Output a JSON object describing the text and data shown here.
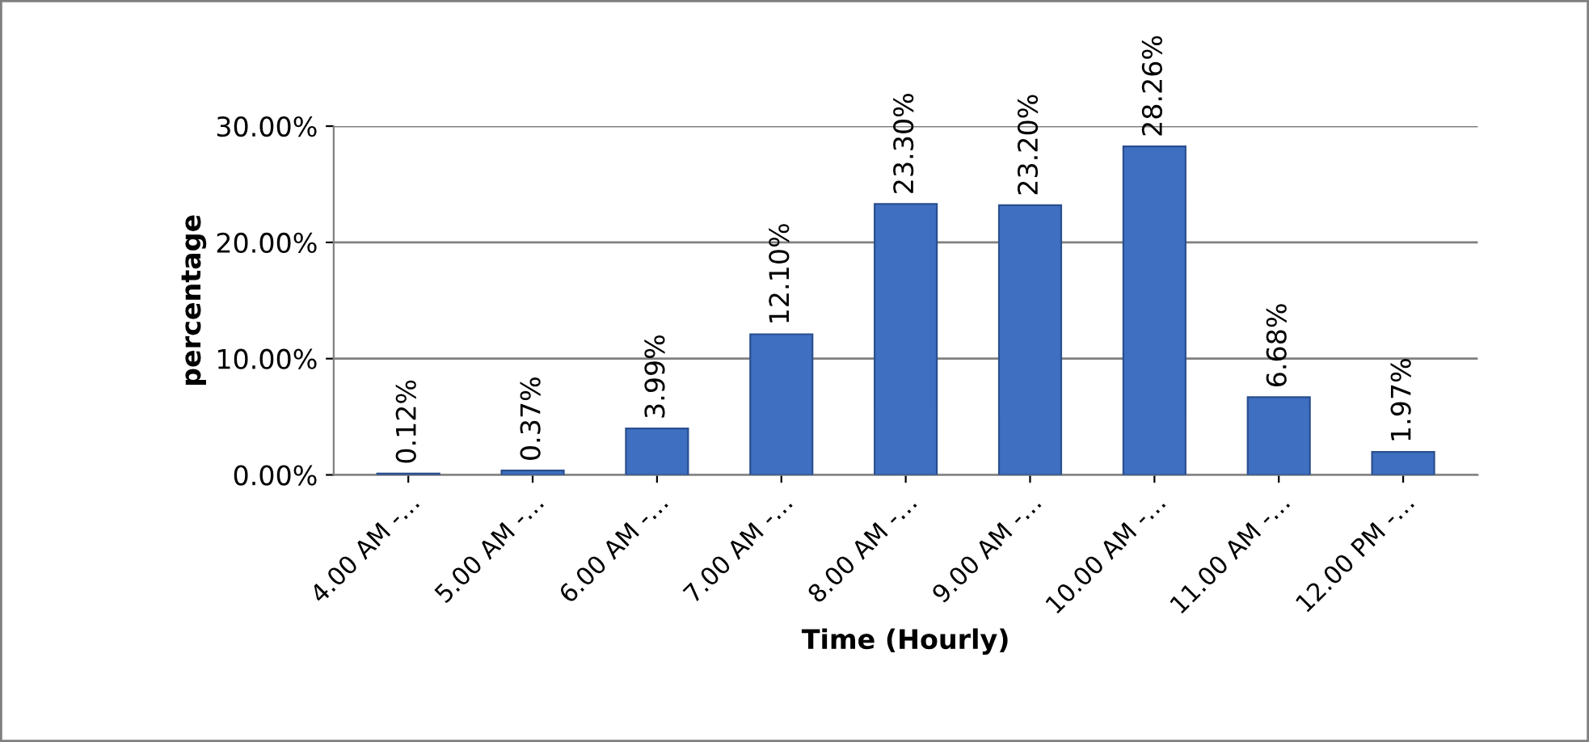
{
  "chart_data": {
    "type": "bar",
    "xlabel": "Time (Hourly)",
    "ylabel": "percentage",
    "categories": [
      "4.00 AM -…",
      "5.00 AM -…",
      "6.00 AM -…",
      "7.00 AM -…",
      "8.00 AM -…",
      "9.00 AM -…",
      "10.00 AM -…",
      "11.00 AM -…",
      "12.00 PM -…"
    ],
    "values": [
      0.12,
      0.37,
      3.99,
      12.1,
      23.3,
      23.2,
      28.26,
      6.68,
      1.97
    ],
    "value_labels": [
      "0.12%",
      "0.37%",
      "3.99%",
      "12.10%",
      "23.30%",
      "23.20%",
      "28.26%",
      "6.68%",
      "1.97%"
    ],
    "color": "#3f6fc0",
    "ylim": [
      0,
      30
    ],
    "yticks": [
      {
        "value": 0,
        "label": "0.00%"
      },
      {
        "value": 10,
        "label": "10.00%"
      },
      {
        "value": 20,
        "label": "20.00%"
      },
      {
        "value": 30,
        "label": "30.00%"
      }
    ],
    "grid": "y",
    "legend": false
  }
}
